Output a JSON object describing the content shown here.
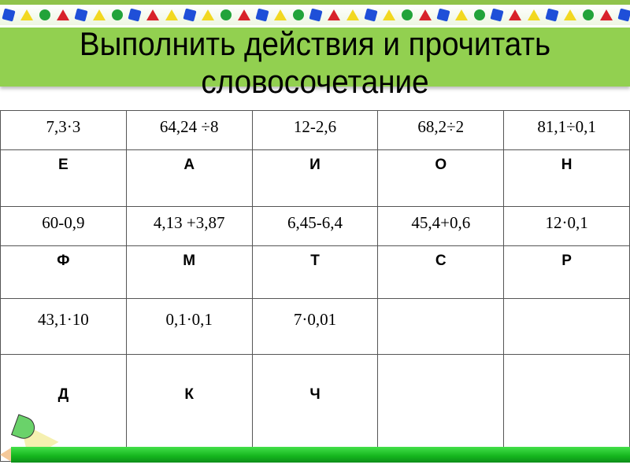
{
  "title": "Выполнить действия и прочитать словосочетание",
  "table": {
    "rows": [
      [
        "7,3·3",
        "64,24 ÷8",
        "12-2,6",
        "68,2÷2",
        "81,1÷0,1"
      ],
      [
        "Е",
        "А",
        "И",
        "О",
        "Н"
      ],
      [
        "60-0,9",
        "4,13 +3,87",
        "6,45-6,4",
        "45,4+0,6",
        "12·0,1"
      ],
      [
        "Ф",
        "М",
        "Т",
        "С",
        "Р"
      ],
      [
        "43,1·10",
        "0,1·0,1",
        "7·0,01",
        "",
        ""
      ],
      [
        "Д",
        "К",
        "Ч",
        "",
        ""
      ]
    ]
  },
  "colors": {
    "header_band": "#92d050",
    "pencil": "#14b51d"
  }
}
